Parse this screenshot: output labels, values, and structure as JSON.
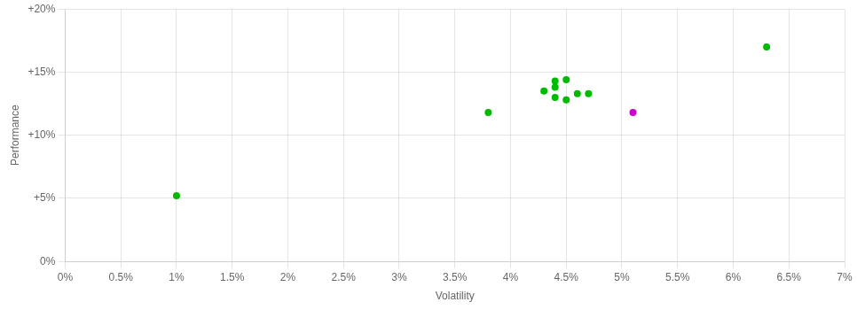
{
  "chart_data": {
    "type": "scatter",
    "xlabel": "Volatility",
    "ylabel": "Performance",
    "series": [
      {
        "color": "#00bb00",
        "marker": "circle",
        "x": [
          0.01,
          0.038,
          0.043,
          0.044,
          0.044,
          0.045,
          0.044,
          0.045,
          0.046,
          0.047,
          0.063
        ],
        "values": [
          0.052,
          0.118,
          0.135,
          0.138,
          0.143,
          0.144,
          0.13,
          0.128,
          0.133,
          0.133,
          0.17
        ]
      },
      {
        "color": "#cc00cc",
        "marker": "circle",
        "x": [
          0.051
        ],
        "values": [
          0.118
        ]
      }
    ],
    "xlim": [
      0.0,
      0.07
    ],
    "ylim": [
      0.0,
      0.2
    ],
    "xticks": [
      {
        "value": 0.0,
        "label": "0%"
      },
      {
        "value": 0.005,
        "label": "0.5%"
      },
      {
        "value": 0.01,
        "label": "1%"
      },
      {
        "value": 0.015,
        "label": "1.5%"
      },
      {
        "value": 0.02,
        "label": "2%"
      },
      {
        "value": 0.025,
        "label": "2.5%"
      },
      {
        "value": 0.03,
        "label": "3%"
      },
      {
        "value": 0.035,
        "label": "3.5%"
      },
      {
        "value": 0.04,
        "label": "4%"
      },
      {
        "value": 0.045,
        "label": "4.5%"
      },
      {
        "value": 0.05,
        "label": "5%"
      },
      {
        "value": 0.055,
        "label": "5.5%"
      },
      {
        "value": 0.06,
        "label": "6%"
      },
      {
        "value": 0.065,
        "label": "6.5%"
      },
      {
        "value": 0.07,
        "label": "7%"
      }
    ],
    "yticks": [
      {
        "value": 0.0,
        "label": "0%"
      },
      {
        "value": 0.05,
        "label": "+5%"
      },
      {
        "value": 0.1,
        "label": "+10%"
      },
      {
        "value": 0.15,
        "label": "+15%"
      },
      {
        "value": 0.2,
        "label": "+20%"
      }
    ],
    "grid": true
  }
}
